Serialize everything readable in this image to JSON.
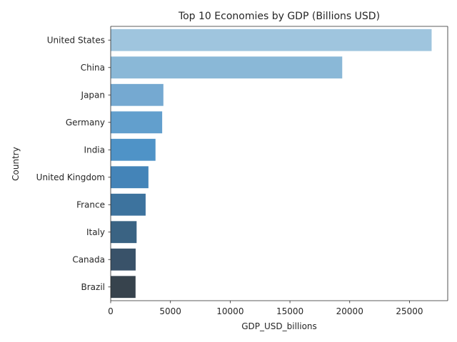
{
  "chart_data": {
    "type": "bar",
    "orientation": "horizontal",
    "title": "Top 10 Economies by GDP (Billions USD)",
    "xlabel": "GDP_USD_billions",
    "ylabel": "Country",
    "categories": [
      "United States",
      "China",
      "Japan",
      "Germany",
      "India",
      "United Kingdom",
      "France",
      "Italy",
      "Canada",
      "Brazil"
    ],
    "values": [
      26854,
      19374,
      4410,
      4309,
      3750,
      3159,
      2924,
      2170,
      2090,
      2081
    ],
    "xlim": [
      0,
      28200
    ],
    "xticks": [
      0,
      5000,
      10000,
      15000,
      20000,
      25000
    ],
    "xtick_labels": [
      "0",
      "5000",
      "10000",
      "15000",
      "20000",
      "25000"
    ],
    "colors": [
      "#9fc5de",
      "#8ab8d7",
      "#75a9d1",
      "#629fcd",
      "#4f93c7",
      "#4484b8",
      "#3d739e",
      "#3a6383",
      "#395269",
      "#37434d"
    ],
    "grid": false,
    "legend": "none"
  }
}
